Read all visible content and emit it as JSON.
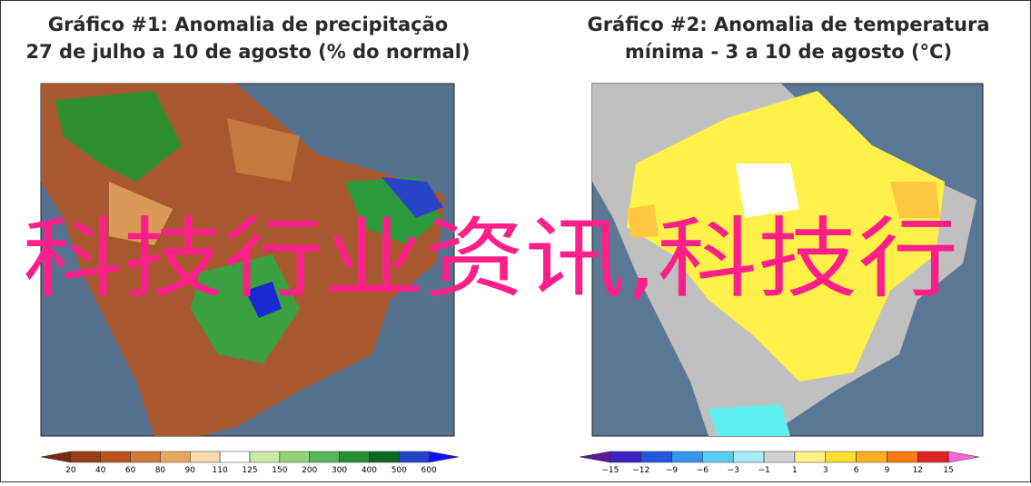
{
  "panels": [
    {
      "title_line1": "Gráfico #1: Anomalia de precipitação",
      "title_line2": "27 de julho a 10 de agosto (% do normal)",
      "legend": {
        "ticks": [
          20,
          40,
          60,
          80,
          90,
          110,
          125,
          150,
          200,
          300,
          400,
          500,
          600
        ],
        "colors": [
          "#7a2a10",
          "#9a3c16",
          "#b9551f",
          "#d27a34",
          "#e8a95e",
          "#f6dcae",
          "#ffffff",
          "#cdeaa6",
          "#94d27a",
          "#58b55a",
          "#279034",
          "#0a6a22",
          "#2244c8",
          "#1010ff"
        ]
      }
    },
    {
      "title_line1": "Gráfico #2: Anomalia de temperatura",
      "title_line2": "mínima - 3 a 10 de agosto (°C)",
      "legend": {
        "ticks": [
          "−15",
          "−12",
          "−9",
          "−6",
          "−3",
          "−1",
          "1",
          "3",
          "6",
          "9",
          "12",
          "15"
        ],
        "colors": [
          "#5a1a9a",
          "#3a22c4",
          "#2356e0",
          "#3596f0",
          "#57cdf2",
          "#a6ecf8",
          "#d2d2d2",
          "#fff280",
          "#ffdd33",
          "#ffb020",
          "#ff7a12",
          "#e02424",
          "#ff66d6"
        ]
      }
    }
  ],
  "overlay": "科技行业资讯,科技行"
}
